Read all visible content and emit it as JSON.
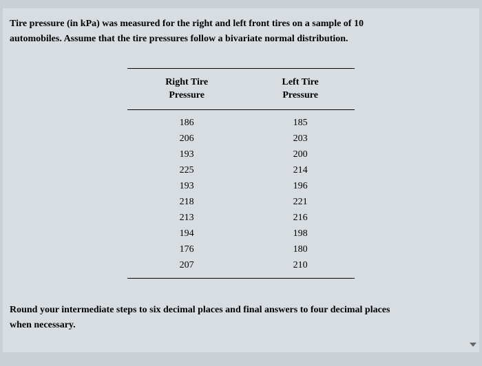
{
  "problem": {
    "text_line1": "Tire pressure (in kPa) was measured for the right and left front tires on a sample of 10",
    "text_line2": "automobiles. Assume that the tire pressures follow a bivariate normal distribution."
  },
  "table": {
    "headers": {
      "col1_line1": "Right Tire",
      "col1_line2": "Pressure",
      "col2_line1": "Left Tire",
      "col2_line2": "Pressure"
    },
    "rows": [
      {
        "right": "186",
        "left": "185"
      },
      {
        "right": "206",
        "left": "203"
      },
      {
        "right": "193",
        "left": "200"
      },
      {
        "right": "225",
        "left": "214"
      },
      {
        "right": "193",
        "left": "196"
      },
      {
        "right": "218",
        "left": "221"
      },
      {
        "right": "213",
        "left": "216"
      },
      {
        "right": "194",
        "left": "198"
      },
      {
        "right": "176",
        "left": "180"
      },
      {
        "right": "207",
        "left": "210"
      }
    ]
  },
  "footer": {
    "text_line1": "Round your intermediate steps to six decimal places and final answers to four decimal places",
    "text_line2": "when necessary."
  },
  "colors": {
    "page_background": "#c8d0d5",
    "content_background": "#d8dde2",
    "banner_color": "#2a3f8f",
    "text_color": "#000000",
    "border_color": "#000000"
  }
}
